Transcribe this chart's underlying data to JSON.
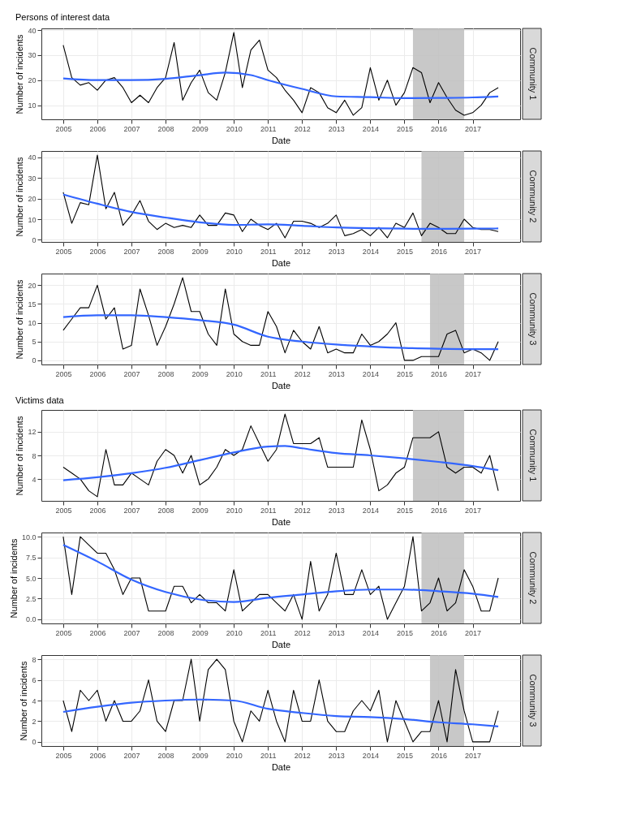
{
  "chart_data": [
    {
      "type": "line",
      "title": "Persons of interest data",
      "xlabel": "Date",
      "ylabel": "Number of incidents",
      "annotations": [
        "Community 1"
      ],
      "grid": true,
      "xlim": [
        2004.36,
        2018.39
      ],
      "ylim": [
        4.35,
        40.65
      ],
      "xticks": [
        2005,
        2006,
        2007,
        2008,
        2009,
        2010,
        2011,
        2012,
        2013,
        2014,
        2015,
        2016,
        2017
      ],
      "yticks": [
        10,
        20,
        30,
        40
      ],
      "x": [
        2005,
        2005.25,
        2005.5,
        2005.75,
        2006,
        2006.25,
        2006.5,
        2006.75,
        2007,
        2007.25,
        2007.5,
        2007.75,
        2008,
        2008.25,
        2008.5,
        2008.75,
        2009,
        2009.25,
        2009.5,
        2009.75,
        2010,
        2010.25,
        2010.5,
        2010.75,
        2011,
        2011.25,
        2011.5,
        2011.75,
        2012,
        2012.25,
        2012.5,
        2012.75,
        2013,
        2013.25,
        2013.5,
        2013.75,
        2014,
        2014.25,
        2014.5,
        2014.75,
        2015,
        2015.25,
        2015.5,
        2015.75,
        2016,
        2016.25,
        2016.5,
        2016.75,
        2017,
        2017.25,
        2017.5,
        2017.75
      ],
      "bands": [
        {
          "axis": "x",
          "from": 2015.25,
          "to": 2016.75,
          "color": "#bebebe"
        }
      ],
      "series": [
        {
          "type": "line",
          "color": "#000000",
          "values": [
            34,
            21,
            18,
            19,
            16,
            20,
            21,
            17,
            11,
            14,
            11,
            17,
            21,
            35,
            12,
            19,
            24,
            15,
            12,
            23,
            39,
            17,
            32,
            36,
            24,
            21,
            16,
            12,
            7,
            17,
            15,
            9,
            7,
            12,
            6,
            9,
            25,
            12,
            20,
            10,
            15,
            25,
            23,
            11,
            19,
            13,
            8,
            6,
            7,
            10,
            15,
            17
          ]
        },
        {
          "type": "line",
          "color": "#3366ff",
          "x": [
            2005,
            2006,
            2007,
            2008,
            2009,
            2009.75,
            2010.5,
            2011,
            2012,
            2013,
            2014,
            2015,
            2016,
            2017,
            2017.75
          ],
          "values": [
            20.7,
            20,
            20,
            20.5,
            22,
            23,
            22,
            20,
            16.5,
            13.5,
            13.2,
            12.8,
            12.9,
            13.1,
            13.5
          ]
        }
      ]
    },
    {
      "type": "line",
      "xlabel": "Date",
      "ylabel": "Number of incidents",
      "annotations": [
        "Community 2"
      ],
      "grid": true,
      "xlim": [
        2004.36,
        2018.39
      ],
      "ylim": [
        -1,
        43
      ],
      "xticks": [
        2005,
        2006,
        2007,
        2008,
        2009,
        2010,
        2011,
        2012,
        2013,
        2014,
        2015,
        2016,
        2017
      ],
      "yticks": [
        0,
        10,
        20,
        30,
        40
      ],
      "x": [
        2005,
        2005.25,
        2005.5,
        2005.75,
        2006,
        2006.25,
        2006.5,
        2006.75,
        2007,
        2007.25,
        2007.5,
        2007.75,
        2008,
        2008.25,
        2008.5,
        2008.75,
        2009,
        2009.25,
        2009.5,
        2009.75,
        2010,
        2010.25,
        2010.5,
        2010.75,
        2011,
        2011.25,
        2011.5,
        2011.75,
        2012,
        2012.25,
        2012.5,
        2012.75,
        2013,
        2013.25,
        2013.5,
        2013.75,
        2014,
        2014.25,
        2014.5,
        2014.75,
        2015,
        2015.25,
        2015.5,
        2015.75,
        2016,
        2016.25,
        2016.5,
        2016.75,
        2017,
        2017.25,
        2017.5,
        2017.75
      ],
      "bands": [
        {
          "axis": "x",
          "from": 2015.5,
          "to": 2016.75,
          "color": "#bebebe"
        }
      ],
      "series": [
        {
          "type": "line",
          "color": "#000000",
          "values": [
            23,
            8,
            18,
            17,
            41,
            15,
            23,
            7,
            12,
            19,
            9,
            5,
            8,
            6,
            7,
            6,
            12,
            7,
            7,
            13,
            12,
            4,
            10,
            7,
            5,
            8,
            1,
            9,
            9,
            8,
            6,
            8,
            12,
            2,
            3,
            5,
            2,
            6,
            1,
            8,
            6,
            13,
            2,
            8,
            6,
            3,
            3,
            10,
            6,
            5,
            5,
            4
          ]
        },
        {
          "type": "line",
          "color": "#3366ff",
          "x": [
            2005,
            2006,
            2007,
            2008,
            2009,
            2010,
            2011,
            2012,
            2013,
            2014,
            2015,
            2016,
            2017,
            2017.75
          ],
          "values": [
            22,
            17.5,
            13.5,
            10.8,
            8.5,
            7.2,
            7.5,
            6.8,
            6,
            5.6,
            5.4,
            5.3,
            5.4,
            5.5
          ]
        }
      ]
    },
    {
      "type": "line",
      "xlabel": "Date",
      "ylabel": "Number of incidents",
      "annotations": [
        "Community 3"
      ],
      "grid": true,
      "xlim": [
        2004.36,
        2018.39
      ],
      "ylim": [
        -1.1,
        23.1
      ],
      "xticks": [
        2005,
        2006,
        2007,
        2008,
        2009,
        2010,
        2011,
        2012,
        2013,
        2014,
        2015,
        2016,
        2017
      ],
      "yticks": [
        0,
        5,
        10,
        15,
        20
      ],
      "x": [
        2005,
        2005.25,
        2005.5,
        2005.75,
        2006,
        2006.25,
        2006.5,
        2006.75,
        2007,
        2007.25,
        2007.5,
        2007.75,
        2008,
        2008.25,
        2008.5,
        2008.75,
        2009,
        2009.25,
        2009.5,
        2009.75,
        2010,
        2010.25,
        2010.5,
        2010.75,
        2011,
        2011.25,
        2011.5,
        2011.75,
        2012,
        2012.25,
        2012.5,
        2012.75,
        2013,
        2013.25,
        2013.5,
        2013.75,
        2014,
        2014.25,
        2014.5,
        2014.75,
        2015,
        2015.25,
        2015.5,
        2015.75,
        2016,
        2016.25,
        2016.5,
        2016.75,
        2017,
        2017.25,
        2017.5,
        2017.75
      ],
      "bands": [
        {
          "axis": "x",
          "from": 2015.75,
          "to": 2016.75,
          "color": "#bebebe"
        }
      ],
      "series": [
        {
          "type": "line",
          "color": "#000000",
          "values": [
            8,
            11,
            14,
            14,
            20,
            11,
            14,
            3,
            4,
            19,
            12,
            4,
            9,
            15,
            22,
            13,
            13,
            7,
            4,
            19,
            7,
            5,
            4,
            4,
            13,
            9,
            2,
            8,
            5,
            3,
            9,
            2,
            3,
            2,
            2,
            7,
            4,
            5,
            7,
            10,
            0,
            0,
            1,
            1,
            1,
            7,
            8,
            2,
            3,
            2,
            0,
            5
          ]
        },
        {
          "type": "line",
          "color": "#3366ff",
          "x": [
            2005,
            2006,
            2007,
            2008,
            2009,
            2010,
            2011,
            2012,
            2013,
            2014,
            2015,
            2016,
            2017,
            2017.75
          ],
          "values": [
            11.5,
            12,
            12,
            11.5,
            10.7,
            9.5,
            6.3,
            5,
            4.2,
            3.7,
            3.3,
            3.1,
            3,
            3
          ]
        }
      ]
    },
    {
      "type": "line",
      "title": "Victims data",
      "xlabel": "Date",
      "ylabel": "Number of incidents",
      "annotations": [
        "Community 1"
      ],
      "grid": true,
      "xlim": [
        2004.36,
        2018.39
      ],
      "ylim": [
        0.3,
        15.7
      ],
      "xticks": [
        2005,
        2006,
        2007,
        2008,
        2009,
        2010,
        2011,
        2012,
        2013,
        2014,
        2015,
        2016,
        2017
      ],
      "yticks": [
        4,
        8,
        12
      ],
      "x": [
        2005,
        2005.25,
        2005.5,
        2005.75,
        2006,
        2006.25,
        2006.5,
        2006.75,
        2007,
        2007.25,
        2007.5,
        2007.75,
        2008,
        2008.25,
        2008.5,
        2008.75,
        2009,
        2009.25,
        2009.5,
        2009.75,
        2010,
        2010.25,
        2010.5,
        2010.75,
        2011,
        2011.25,
        2011.5,
        2011.75,
        2012,
        2012.25,
        2012.5,
        2012.75,
        2013,
        2013.25,
        2013.5,
        2013.75,
        2014,
        2014.25,
        2014.5,
        2014.75,
        2015,
        2015.25,
        2015.5,
        2015.75,
        2016,
        2016.25,
        2016.5,
        2016.75,
        2017,
        2017.25,
        2017.5,
        2017.75
      ],
      "bands": [
        {
          "axis": "x",
          "from": 2015.25,
          "to": 2016.75,
          "color": "#bebebe"
        }
      ],
      "series": [
        {
          "type": "line",
          "color": "#000000",
          "values": [
            6,
            5,
            4,
            2,
            1,
            9,
            3,
            3,
            5,
            4,
            3,
            7,
            9,
            8,
            5,
            8,
            3,
            4,
            6,
            9,
            8,
            9,
            13,
            10,
            7,
            9,
            15,
            10,
            10,
            10,
            11,
            6,
            6,
            6,
            6,
            14,
            9,
            2,
            3,
            5,
            6,
            11,
            11,
            11,
            12,
            6,
            5,
            6,
            6,
            5,
            8,
            2
          ]
        },
        {
          "type": "line",
          "color": "#3366ff",
          "x": [
            2005,
            2006,
            2007,
            2008,
            2009,
            2010,
            2011,
            2011.5,
            2012,
            2013,
            2014,
            2015,
            2016,
            2017,
            2017.75
          ],
          "values": [
            3.8,
            4.3,
            5,
            5.9,
            7.2,
            8.5,
            9.5,
            9.6,
            9.2,
            8.4,
            8,
            7.5,
            6.9,
            6.2,
            5.5
          ]
        }
      ]
    },
    {
      "type": "line",
      "xlabel": "Date",
      "ylabel": "Number of incidents",
      "annotations": [
        "Community 2"
      ],
      "grid": true,
      "xlim": [
        2004.36,
        2018.39
      ],
      "ylim": [
        -0.5,
        10.5
      ],
      "xticks": [
        2005,
        2006,
        2007,
        2008,
        2009,
        2010,
        2011,
        2012,
        2013,
        2014,
        2015,
        2016,
        2017
      ],
      "yticks": [
        {
          "value": 0,
          "label": "0.0"
        },
        2.5,
        {
          "value": 5,
          "label": "5.0"
        },
        7.5,
        {
          "value": 10,
          "label": "10.0"
        }
      ],
      "x": [
        2005,
        2005.25,
        2005.5,
        2005.75,
        2006,
        2006.25,
        2006.5,
        2006.75,
        2007,
        2007.25,
        2007.5,
        2007.75,
        2008,
        2008.25,
        2008.5,
        2008.75,
        2009,
        2009.25,
        2009.5,
        2009.75,
        2010,
        2010.25,
        2010.5,
        2010.75,
        2011,
        2011.25,
        2011.5,
        2011.75,
        2012,
        2012.25,
        2012.5,
        2012.75,
        2013,
        2013.25,
        2013.5,
        2013.75,
        2014,
        2014.25,
        2014.5,
        2014.75,
        2015,
        2015.25,
        2015.5,
        2015.75,
        2016,
        2016.25,
        2016.5,
        2016.75,
        2017,
        2017.25,
        2017.5,
        2017.75
      ],
      "bands": [
        {
          "axis": "x",
          "from": 2015.5,
          "to": 2016.75,
          "color": "#bebebe"
        }
      ],
      "series": [
        {
          "type": "line",
          "color": "#000000",
          "values": [
            10,
            3,
            10,
            9,
            8,
            8,
            6,
            3,
            5,
            5,
            1,
            1,
            1,
            4,
            4,
            2,
            3,
            2,
            2,
            1,
            6,
            1,
            2,
            3,
            3,
            2,
            1,
            3,
            0,
            7,
            1,
            3,
            8,
            3,
            3,
            6,
            3,
            4,
            0,
            2,
            4,
            10,
            1,
            2,
            5,
            1,
            2,
            6,
            4,
            1,
            1,
            5
          ]
        },
        {
          "type": "line",
          "color": "#3366ff",
          "x": [
            2005,
            2006,
            2007,
            2008,
            2009,
            2010,
            2011,
            2012,
            2013,
            2014,
            2015,
            2016,
            2017,
            2017.75
          ],
          "values": [
            9,
            7,
            4.8,
            3.3,
            2.4,
            2.1,
            2.6,
            3,
            3.4,
            3.6,
            3.6,
            3.4,
            3.1,
            2.7
          ]
        }
      ]
    },
    {
      "type": "line",
      "xlabel": "Date",
      "ylabel": "Number of incidents",
      "annotations": [
        "Community 3"
      ],
      "grid": true,
      "xlim": [
        2004.36,
        2018.39
      ],
      "ylim": [
        -0.4,
        8.4
      ],
      "xticks": [
        2005,
        2006,
        2007,
        2008,
        2009,
        2010,
        2011,
        2012,
        2013,
        2014,
        2015,
        2016,
        2017
      ],
      "yticks": [
        0,
        2,
        4,
        6,
        8
      ],
      "x": [
        2005,
        2005.25,
        2005.5,
        2005.75,
        2006,
        2006.25,
        2006.5,
        2006.75,
        2007,
        2007.25,
        2007.5,
        2007.75,
        2008,
        2008.25,
        2008.5,
        2008.75,
        2009,
        2009.25,
        2009.5,
        2009.75,
        2010,
        2010.25,
        2010.5,
        2010.75,
        2011,
        2011.25,
        2011.5,
        2011.75,
        2012,
        2012.25,
        2012.5,
        2012.75,
        2013,
        2013.25,
        2013.5,
        2013.75,
        2014,
        2014.25,
        2014.5,
        2014.75,
        2015,
        2015.25,
        2015.5,
        2015.75,
        2016,
        2016.25,
        2016.5,
        2016.75,
        2017,
        2017.25,
        2017.5,
        2017.75
      ],
      "bands": [
        {
          "axis": "x",
          "from": 2015.75,
          "to": 2016.75,
          "color": "#bebebe"
        }
      ],
      "series": [
        {
          "type": "line",
          "color": "#000000",
          "values": [
            4,
            1,
            5,
            4,
            5,
            2,
            4,
            2,
            2,
            3,
            6,
            2,
            1,
            4,
            4,
            8,
            2,
            7,
            8,
            7,
            2,
            0,
            3,
            2,
            5,
            2,
            0,
            5,
            2,
            2,
            6,
            2,
            1,
            1,
            3,
            4,
            3,
            5,
            0,
            4,
            2,
            0,
            1,
            1,
            4,
            0,
            7,
            3,
            0,
            0,
            0,
            3
          ]
        },
        {
          "type": "line",
          "color": "#3366ff",
          "x": [
            2005,
            2006,
            2007,
            2008,
            2009,
            2010,
            2011,
            2012,
            2013,
            2014,
            2015,
            2016,
            2017,
            2017.75
          ],
          "values": [
            2.9,
            3.4,
            3.8,
            4,
            4.1,
            4,
            3.2,
            2.8,
            2.5,
            2.4,
            2.2,
            1.9,
            1.7,
            1.5
          ]
        }
      ]
    }
  ]
}
